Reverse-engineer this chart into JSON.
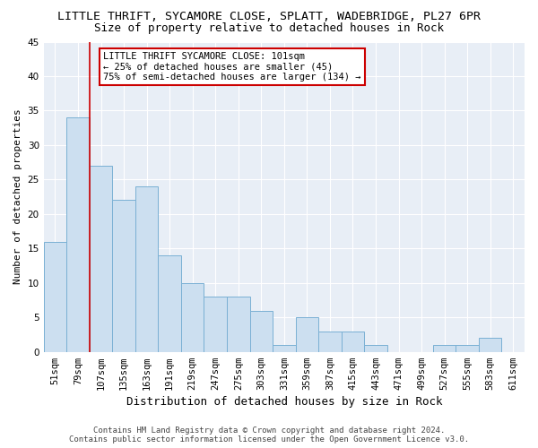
{
  "title": "LITTLE THRIFT, SYCAMORE CLOSE, SPLATT, WADEBRIDGE, PL27 6PR",
  "subtitle": "Size of property relative to detached houses in Rock",
  "xlabel": "Distribution of detached houses by size in Rock",
  "ylabel": "Number of detached properties",
  "categories": [
    "51sqm",
    "79sqm",
    "107sqm",
    "135sqm",
    "163sqm",
    "191sqm",
    "219sqm",
    "247sqm",
    "275sqm",
    "303sqm",
    "331sqm",
    "359sqm",
    "387sqm",
    "415sqm",
    "443sqm",
    "471sqm",
    "499sqm",
    "527sqm",
    "555sqm",
    "583sqm",
    "611sqm"
  ],
  "values": [
    16,
    34,
    27,
    22,
    24,
    14,
    10,
    8,
    8,
    6,
    1,
    5,
    3,
    3,
    1,
    0,
    0,
    1,
    1,
    2,
    0
  ],
  "bar_color": "#ccdff0",
  "bar_edge_color": "#7ab0d4",
  "background_color": "#e8eef6",
  "grid_color": "#ffffff",
  "vline_color": "#cc0000",
  "vline_x": 1.5,
  "annotation_text": "LITTLE THRIFT SYCAMORE CLOSE: 101sqm\n← 25% of detached houses are smaller (45)\n75% of semi-detached houses are larger (134) →",
  "annotation_box_color": "#ffffff",
  "annotation_box_edge": "#cc0000",
  "ylim": [
    0,
    45
  ],
  "yticks": [
    0,
    5,
    10,
    15,
    20,
    25,
    30,
    35,
    40,
    45
  ],
  "title_fontsize": 9.5,
  "subtitle_fontsize": 9,
  "xlabel_fontsize": 9,
  "ylabel_fontsize": 8,
  "tick_fontsize": 7.5,
  "annotation_fontsize": 7.5,
  "footer_fontsize": 6.5,
  "footer": "Contains HM Land Registry data © Crown copyright and database right 2024.\nContains public sector information licensed under the Open Government Licence v3.0."
}
